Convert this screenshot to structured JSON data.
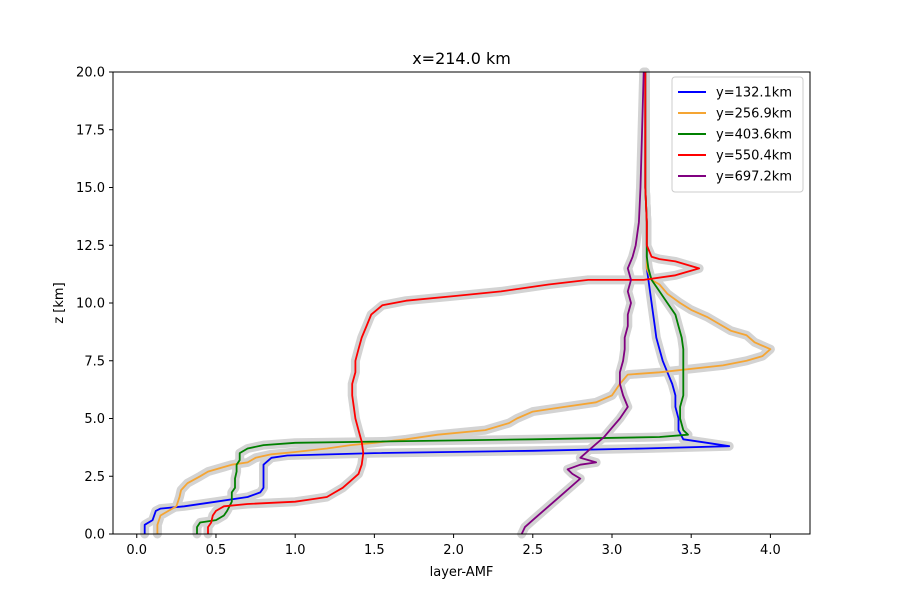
{
  "chart_data": {
    "type": "line",
    "title": "x=214.0 km",
    "xlabel": "layer-AMF",
    "ylabel": "z [km]",
    "xlim": [
      -0.15,
      4.25
    ],
    "ylim": [
      0,
      20
    ],
    "xticks": [
      0.0,
      0.5,
      1.0,
      1.5,
      2.0,
      2.5,
      3.0,
      3.5,
      4.0
    ],
    "xtick_labels": [
      "0.0",
      "0.5",
      "1.0",
      "1.5",
      "2.0",
      "2.5",
      "3.0",
      "3.5",
      "4.0"
    ],
    "yticks": [
      0.0,
      2.5,
      5.0,
      7.5,
      10.0,
      12.5,
      15.0,
      17.5,
      20.0
    ],
    "ytick_labels": [
      "0.0",
      "2.5",
      "5.0",
      "7.5",
      "10.0",
      "12.5",
      "15.0",
      "17.5",
      "20.0"
    ],
    "grid": false,
    "legend_position": "top-right",
    "band_color": "#d3d3d3",
    "series": [
      {
        "name": "y=132.1km",
        "color": "#0000ff",
        "points": [
          [
            0.05,
            0
          ],
          [
            0.05,
            0.4
          ],
          [
            0.1,
            0.6
          ],
          [
            0.12,
            1.0
          ],
          [
            0.15,
            1.1
          ],
          [
            0.3,
            1.2
          ],
          [
            0.5,
            1.4
          ],
          [
            0.7,
            1.6
          ],
          [
            0.78,
            1.8
          ],
          [
            0.8,
            2.0
          ],
          [
            0.8,
            2.6
          ],
          [
            0.8,
            3.0
          ],
          [
            0.85,
            3.3
          ],
          [
            0.95,
            3.4
          ],
          [
            1.5,
            3.5
          ],
          [
            2.5,
            3.6
          ],
          [
            3.2,
            3.7
          ],
          [
            3.74,
            3.8
          ],
          [
            3.6,
            3.95
          ],
          [
            3.45,
            4.1
          ],
          [
            3.42,
            4.5
          ],
          [
            3.42,
            5.0
          ],
          [
            3.4,
            5.5
          ],
          [
            3.4,
            6.0
          ],
          [
            3.38,
            6.5
          ],
          [
            3.35,
            7.0
          ],
          [
            3.32,
            7.5
          ],
          [
            3.3,
            8.0
          ],
          [
            3.28,
            8.5
          ],
          [
            3.27,
            9.0
          ],
          [
            3.26,
            9.5
          ],
          [
            3.25,
            10.0
          ],
          [
            3.23,
            11.0
          ],
          [
            3.22,
            11.5
          ],
          [
            3.22,
            12.0
          ],
          [
            3.22,
            12.5
          ],
          [
            3.22,
            13.5
          ],
          [
            3.21,
            15.0
          ],
          [
            3.21,
            17.5
          ],
          [
            3.21,
            20.0
          ]
        ]
      },
      {
        "name": "y=256.9km",
        "color": "#f5a533",
        "points": [
          [
            0.13,
            0
          ],
          [
            0.13,
            0.4
          ],
          [
            0.15,
            0.8
          ],
          [
            0.2,
            1.0
          ],
          [
            0.25,
            1.2
          ],
          [
            0.27,
            1.6
          ],
          [
            0.28,
            1.9
          ],
          [
            0.32,
            2.2
          ],
          [
            0.4,
            2.5
          ],
          [
            0.45,
            2.7
          ],
          [
            0.55,
            2.9
          ],
          [
            0.6,
            3.0
          ],
          [
            0.7,
            3.1
          ],
          [
            0.75,
            3.3
          ],
          [
            0.85,
            3.45
          ],
          [
            1.0,
            3.55
          ],
          [
            1.2,
            3.7
          ],
          [
            1.35,
            3.85
          ],
          [
            1.5,
            3.95
          ],
          [
            1.7,
            4.1
          ],
          [
            1.9,
            4.3
          ],
          [
            2.2,
            4.5
          ],
          [
            2.35,
            4.8
          ],
          [
            2.4,
            5.0
          ],
          [
            2.5,
            5.3
          ],
          [
            2.7,
            5.5
          ],
          [
            2.9,
            5.7
          ],
          [
            3.0,
            6.0
          ],
          [
            3.05,
            6.5
          ],
          [
            3.1,
            6.9
          ],
          [
            3.3,
            7.0
          ],
          [
            3.7,
            7.3
          ],
          [
            3.85,
            7.5
          ],
          [
            3.95,
            7.7
          ],
          [
            4.0,
            8.0
          ],
          [
            3.9,
            8.3
          ],
          [
            3.85,
            8.6
          ],
          [
            3.75,
            8.8
          ],
          [
            3.7,
            9.0
          ],
          [
            3.6,
            9.4
          ],
          [
            3.5,
            9.7
          ],
          [
            3.43,
            10.0
          ],
          [
            3.35,
            10.4
          ],
          [
            3.3,
            10.8
          ],
          [
            3.25,
            11.0
          ],
          [
            3.22,
            11.5
          ],
          [
            3.22,
            12.0
          ],
          [
            3.22,
            12.5
          ],
          [
            3.22,
            13.5
          ],
          [
            3.21,
            15.0
          ],
          [
            3.21,
            17.5
          ],
          [
            3.21,
            20.0
          ]
        ]
      },
      {
        "name": "y=403.6km",
        "color": "#008000",
        "points": [
          [
            0.38,
            0
          ],
          [
            0.38,
            0.3
          ],
          [
            0.4,
            0.5
          ],
          [
            0.5,
            0.6
          ],
          [
            0.55,
            0.8
          ],
          [
            0.57,
            1.0
          ],
          [
            0.6,
            1.4
          ],
          [
            0.6,
            1.8
          ],
          [
            0.62,
            2.0
          ],
          [
            0.62,
            2.4
          ],
          [
            0.63,
            2.7
          ],
          [
            0.63,
            3.0
          ],
          [
            0.65,
            3.2
          ],
          [
            0.65,
            3.5
          ],
          [
            0.7,
            3.7
          ],
          [
            0.8,
            3.85
          ],
          [
            1.0,
            3.95
          ],
          [
            1.5,
            4.0
          ],
          [
            2.5,
            4.1
          ],
          [
            3.3,
            4.2
          ],
          [
            3.48,
            4.3
          ],
          [
            3.45,
            4.5
          ],
          [
            3.43,
            5.0
          ],
          [
            3.43,
            5.5
          ],
          [
            3.45,
            6.0
          ],
          [
            3.45,
            6.5
          ],
          [
            3.45,
            7.0
          ],
          [
            3.45,
            7.5
          ],
          [
            3.45,
            8.0
          ],
          [
            3.44,
            8.5
          ],
          [
            3.42,
            9.0
          ],
          [
            3.4,
            9.5
          ],
          [
            3.35,
            10.0
          ],
          [
            3.3,
            10.5
          ],
          [
            3.25,
            11.0
          ],
          [
            3.23,
            11.5
          ],
          [
            3.22,
            12.0
          ],
          [
            3.22,
            12.5
          ],
          [
            3.22,
            13.5
          ],
          [
            3.21,
            15.0
          ],
          [
            3.21,
            17.5
          ],
          [
            3.21,
            20.0
          ]
        ]
      },
      {
        "name": "y=550.4km",
        "color": "#ff0000",
        "points": [
          [
            0.45,
            0
          ],
          [
            0.45,
            0.3
          ],
          [
            0.47,
            0.5
          ],
          [
            0.48,
            0.8
          ],
          [
            0.5,
            1.0
          ],
          [
            0.55,
            1.2
          ],
          [
            0.7,
            1.3
          ],
          [
            1.0,
            1.4
          ],
          [
            1.1,
            1.5
          ],
          [
            1.2,
            1.6
          ],
          [
            1.25,
            1.8
          ],
          [
            1.3,
            2.0
          ],
          [
            1.35,
            2.3
          ],
          [
            1.4,
            2.6
          ],
          [
            1.42,
            3.0
          ],
          [
            1.43,
            3.5
          ],
          [
            1.42,
            4.0
          ],
          [
            1.4,
            4.5
          ],
          [
            1.38,
            5.0
          ],
          [
            1.37,
            5.5
          ],
          [
            1.36,
            6.0
          ],
          [
            1.36,
            6.5
          ],
          [
            1.38,
            7.0
          ],
          [
            1.38,
            7.5
          ],
          [
            1.4,
            8.0
          ],
          [
            1.42,
            8.5
          ],
          [
            1.45,
            9.0
          ],
          [
            1.48,
            9.5
          ],
          [
            1.55,
            9.9
          ],
          [
            1.7,
            10.1
          ],
          [
            2.0,
            10.3
          ],
          [
            2.3,
            10.5
          ],
          [
            2.6,
            10.8
          ],
          [
            2.85,
            11.0
          ],
          [
            3.2,
            11.0
          ],
          [
            3.4,
            11.2
          ],
          [
            3.55,
            11.5
          ],
          [
            3.4,
            11.8
          ],
          [
            3.3,
            11.9
          ],
          [
            3.25,
            12.0
          ],
          [
            3.22,
            12.5
          ],
          [
            3.22,
            13.5
          ],
          [
            3.21,
            15.0
          ],
          [
            3.21,
            17.5
          ],
          [
            3.21,
            20.0
          ]
        ]
      },
      {
        "name": "y=697.2km",
        "color": "#800080",
        "points": [
          [
            2.43,
            0
          ],
          [
            2.45,
            0.3
          ],
          [
            2.5,
            0.6
          ],
          [
            2.55,
            0.9
          ],
          [
            2.6,
            1.2
          ],
          [
            2.65,
            1.5
          ],
          [
            2.7,
            1.8
          ],
          [
            2.75,
            2.1
          ],
          [
            2.8,
            2.4
          ],
          [
            2.75,
            2.6
          ],
          [
            2.72,
            2.8
          ],
          [
            2.8,
            3.0
          ],
          [
            2.9,
            3.1
          ],
          [
            2.8,
            3.3
          ],
          [
            2.85,
            3.6
          ],
          [
            2.9,
            3.9
          ],
          [
            2.95,
            4.2
          ],
          [
            3.0,
            4.6
          ],
          [
            3.05,
            5.0
          ],
          [
            3.1,
            5.5
          ],
          [
            3.07,
            6.0
          ],
          [
            3.05,
            6.5
          ],
          [
            3.05,
            7.0
          ],
          [
            3.07,
            7.5
          ],
          [
            3.08,
            8.0
          ],
          [
            3.08,
            8.5
          ],
          [
            3.1,
            9.0
          ],
          [
            3.1,
            9.5
          ],
          [
            3.12,
            10.0
          ],
          [
            3.1,
            10.5
          ],
          [
            3.12,
            11.0
          ],
          [
            3.1,
            11.5
          ],
          [
            3.13,
            12.0
          ],
          [
            3.15,
            12.5
          ],
          [
            3.17,
            13.5
          ],
          [
            3.18,
            15.0
          ],
          [
            3.19,
            17.5
          ],
          [
            3.2,
            20.0
          ]
        ]
      }
    ]
  }
}
